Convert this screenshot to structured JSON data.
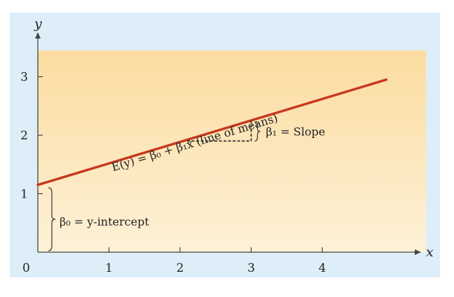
{
  "chart_data": {
    "type": "line",
    "x_axis": {
      "label": "x",
      "ticks": [
        "1",
        "2",
        "3",
        "4"
      ],
      "range": [
        0,
        5.5
      ]
    },
    "y_axis": {
      "label": "y",
      "ticks": [
        "1",
        "2",
        "3"
      ],
      "range": [
        0,
        3.4
      ]
    },
    "origin_label": "0",
    "series": [
      {
        "x": [
          0,
          4.9
        ],
        "y": [
          1.15,
          2.95
        ],
        "color": "#c8391f"
      }
    ],
    "slope_marker": {
      "x_start": 2.1,
      "x_end": 3.0,
      "y_base": 1.9
    },
    "annotations": {
      "line_label": "E(y) = β₀ + β₁x (line of means)",
      "slope_label": "β₁ = Slope",
      "intercept_label": "β₀ = y-intercept"
    },
    "background_colors": {
      "band_top": "#fcdca0",
      "band_bottom": "#fdf1d7",
      "frame": "#deeef8"
    },
    "grid": false
  }
}
